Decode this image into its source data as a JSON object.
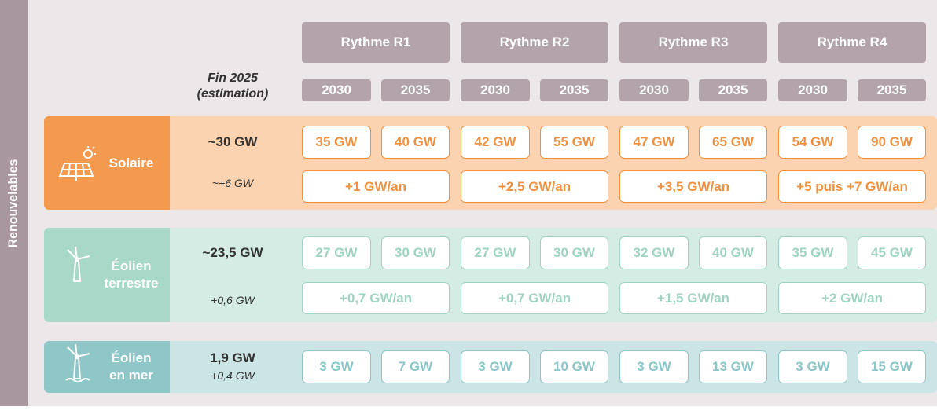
{
  "side_label": "Renouvelables",
  "header": {
    "estimate": [
      "Fin 2025",
      "(estimation)"
    ]
  },
  "scenarios": [
    {
      "name": "Rythme R1",
      "years": [
        "2030",
        "2035"
      ]
    },
    {
      "name": "Rythme R2",
      "years": [
        "2030",
        "2035"
      ]
    },
    {
      "name": "Rythme R3",
      "years": [
        "2030",
        "2035"
      ]
    },
    {
      "name": "Rythme R4",
      "years": [
        "2030",
        "2035"
      ]
    }
  ],
  "rows": [
    {
      "label": [
        "Solaire"
      ],
      "current": "~30 GW",
      "growth": "~+6 GW",
      "targets": [
        "35 GW",
        "40 GW",
        "42 GW",
        "55 GW",
        "47 GW",
        "65 GW",
        "54 GW",
        "90 GW"
      ],
      "rates": [
        "+1 GW/an",
        "+2,5 GW/an",
        "+3,5 GW/an",
        "+5 puis +7 GW/an"
      ]
    },
    {
      "label": [
        "Éolien",
        "terrestre"
      ],
      "current": "~23,5 GW",
      "growth": "+0,6 GW",
      "targets": [
        "27 GW",
        "30 GW",
        "27 GW",
        "30 GW",
        "32 GW",
        "40 GW",
        "35 GW",
        "45 GW"
      ],
      "rates": [
        "+0,7 GW/an",
        "+0,7 GW/an",
        "+1,5 GW/an",
        "+2 GW/an"
      ]
    },
    {
      "label": [
        "Éolien",
        "en mer"
      ],
      "current": "1,9 GW",
      "growth": "+0,4 GW",
      "targets": [
        "3 GW",
        "7 GW",
        "3 GW",
        "10 GW",
        "3 GW",
        "13 GW",
        "3 GW",
        "15 GW"
      ]
    }
  ]
}
